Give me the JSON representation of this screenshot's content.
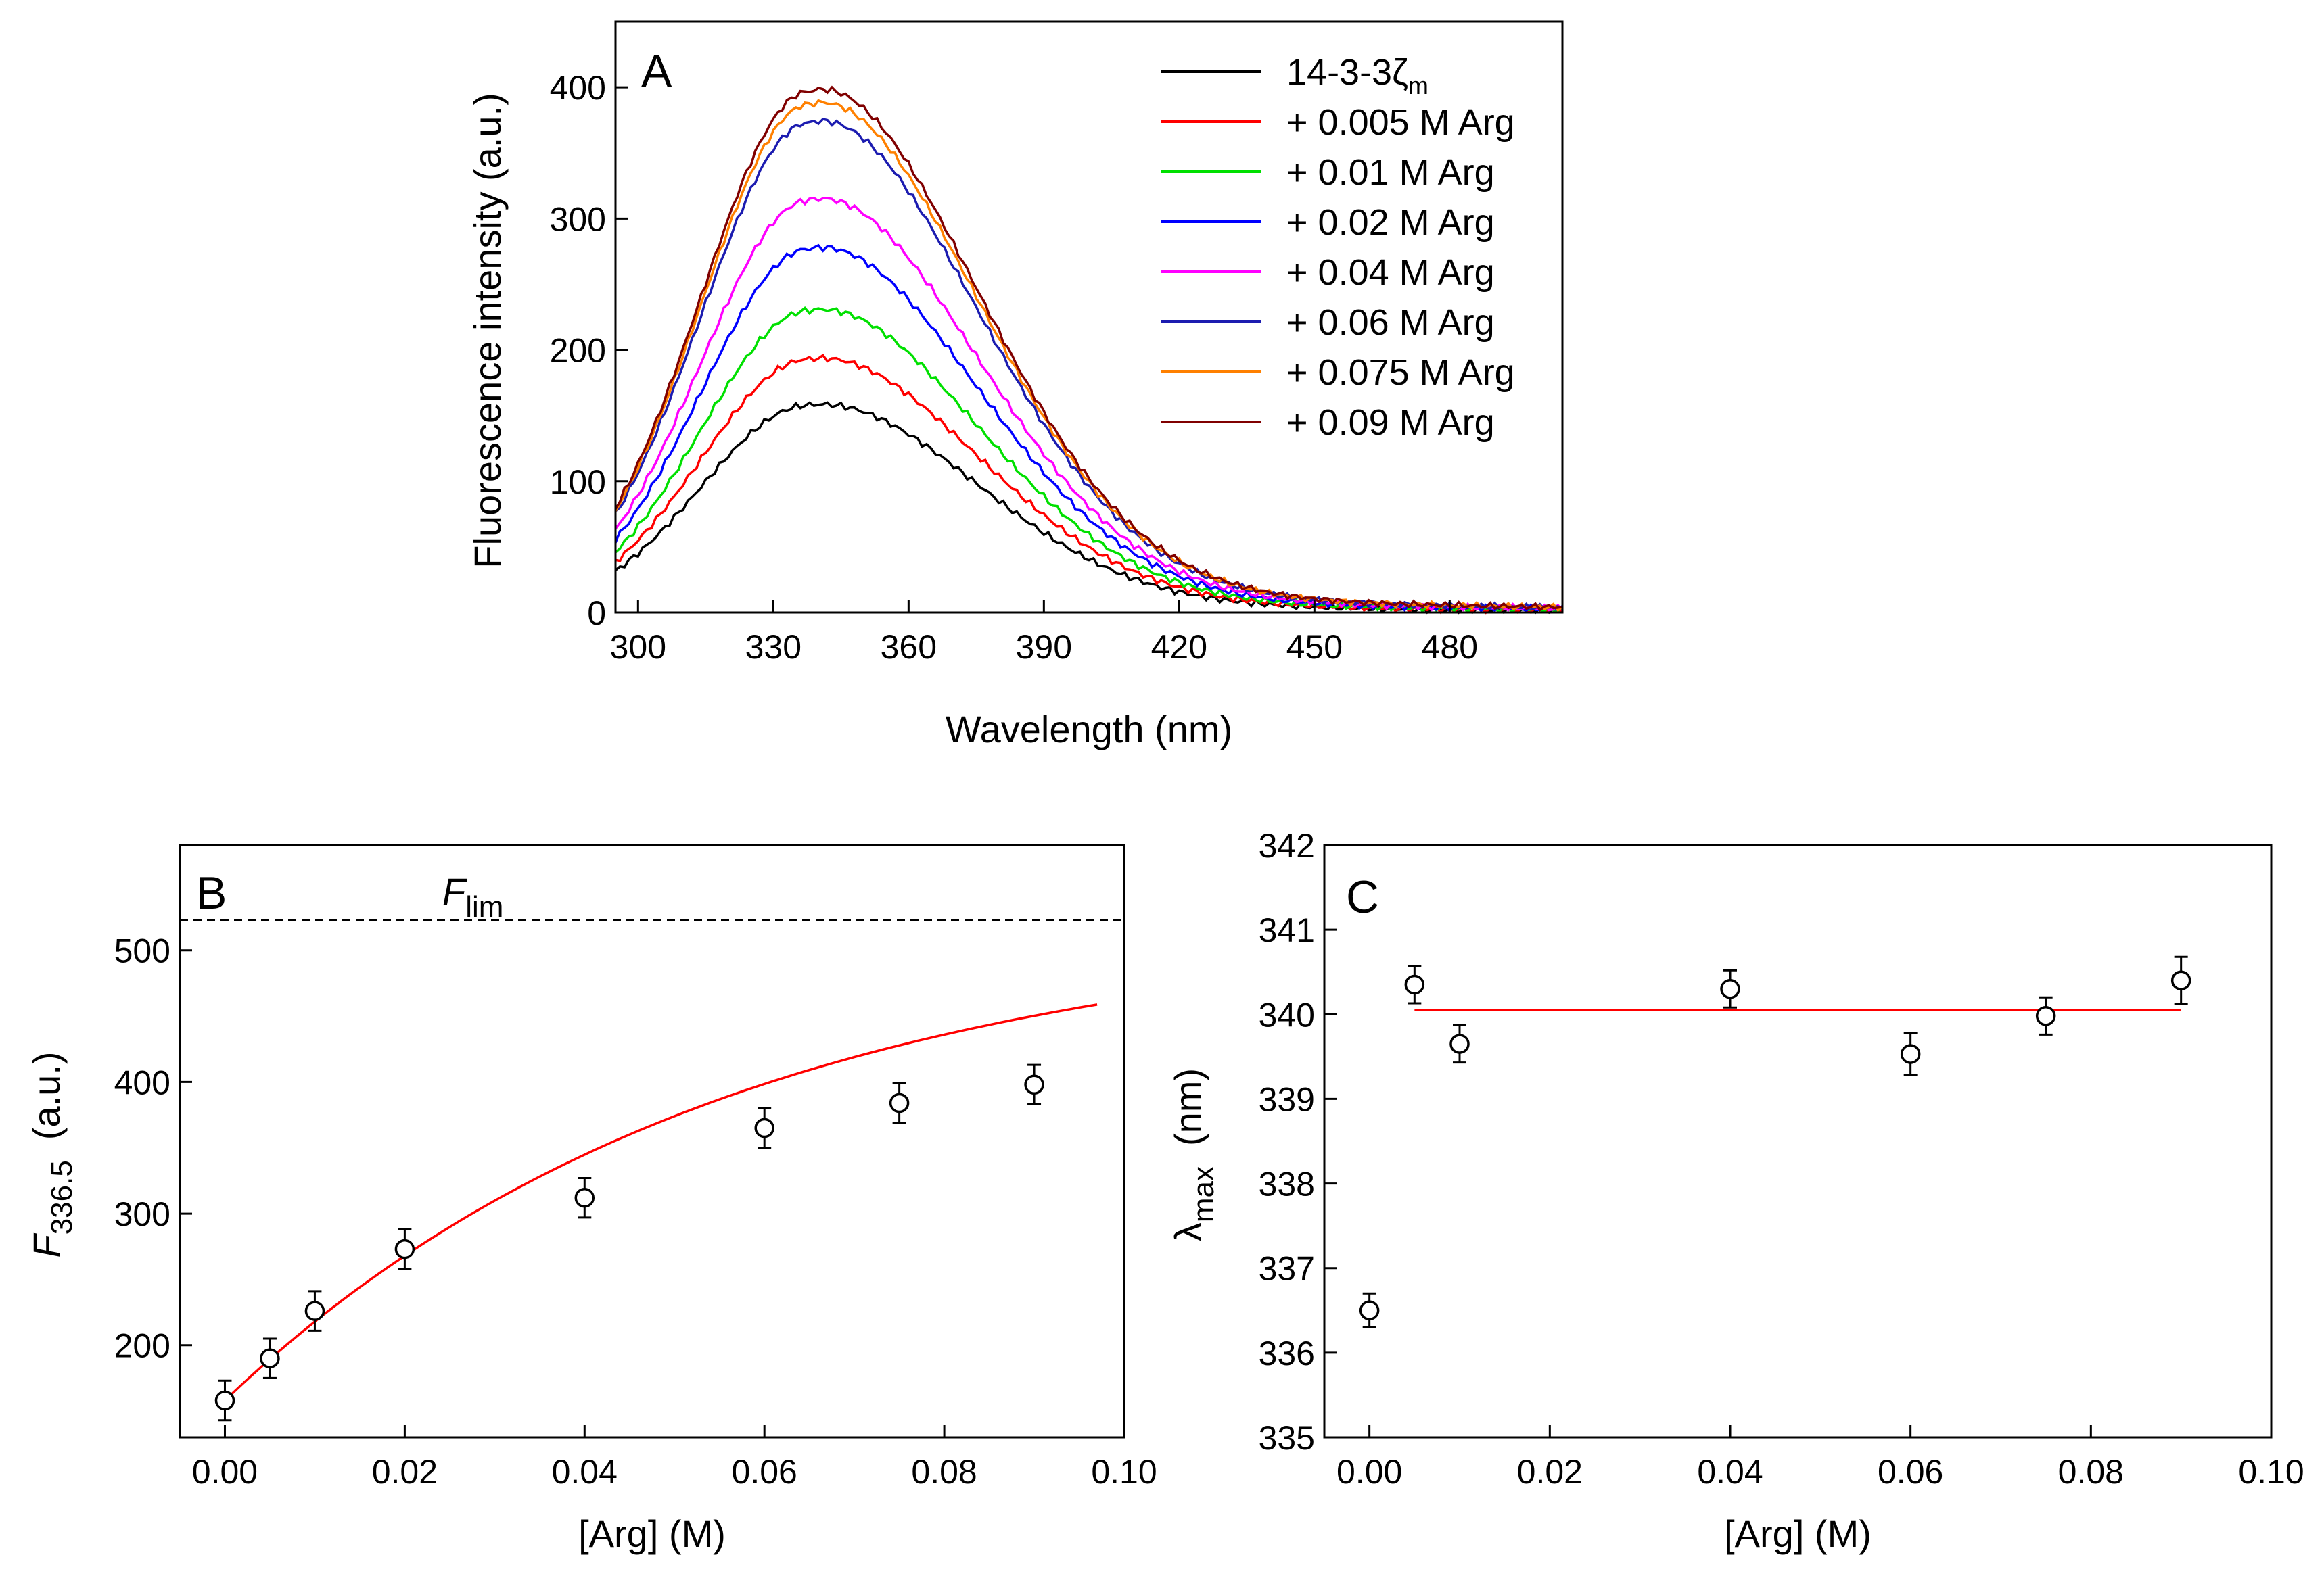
{
  "chart_data": [
    {
      "panel": "A",
      "type": "line",
      "panel_label": "A",
      "xlabel": "Wavelength  (nm)",
      "ylabel": "Fluorescence intensity  (a.u.)",
      "xlim": [
        295,
        505
      ],
      "ylim": [
        0,
        450
      ],
      "xticks": [
        "300",
        "330",
        "360",
        "390",
        "420",
        "450",
        "480"
      ],
      "yticks": [
        "0",
        "100",
        "200",
        "300",
        "400"
      ],
      "legend_position": "top-right",
      "series": [
        {
          "name": "14-3-3ζm",
          "legend_main": "14-3-3ζ",
          "legend_sub": "m",
          "color": "#000000",
          "peak": 158
        },
        {
          "name": "+ 0.005 M Arg",
          "color": "#ff0000",
          "peak": 193
        },
        {
          "name": "+ 0.01 M Arg",
          "color": "#00e000",
          "peak": 230
        },
        {
          "name": "+ 0.02 M Arg",
          "color": "#0000ff",
          "peak": 277
        },
        {
          "name": "+ 0.04 M Arg",
          "color": "#ff00ff",
          "peak": 314
        },
        {
          "name": "+ 0.06 M Arg",
          "color": "#1c1cb0",
          "peak": 373
        },
        {
          "name": "+ 0.075 M Arg",
          "color": "#ff8000",
          "peak": 387
        },
        {
          "name": "+ 0.09 M Arg",
          "color": "#800000",
          "peak": 397
        }
      ]
    },
    {
      "panel": "B",
      "type": "scatter",
      "panel_label": "B",
      "xlabel": "[Arg] (M)",
      "ylabel_main": "F",
      "ylabel_sub": "336.5",
      "ylabel_unit": "(a.u.)",
      "xlim": [
        -0.005,
        0.1
      ],
      "ylim": [
        130,
        580
      ],
      "xticks": [
        "0.00",
        "0.02",
        "0.04",
        "0.06",
        "0.08",
        "0.10"
      ],
      "yticks": [
        "200",
        "300",
        "400",
        "500"
      ],
      "limit_label_main": "F",
      "limit_label_sub": "lim",
      "limit_value": 523,
      "x": [
        0,
        0.005,
        0.01,
        0.02,
        0.04,
        0.06,
        0.075,
        0.09
      ],
      "y": [
        158,
        190,
        226,
        273,
        312,
        365,
        384,
        398
      ],
      "yerr": [
        15,
        15,
        15,
        15,
        15,
        15,
        15,
        15
      ],
      "fit_color": "#ff0000",
      "fit_x_range": [
        0,
        0.097
      ]
    },
    {
      "panel": "C",
      "type": "scatter",
      "panel_label": "C",
      "xlabel": "[Arg] (M)",
      "ylabel_main": "λ",
      "ylabel_sub": "max",
      "ylabel_unit": "(nm)",
      "xlim": [
        -0.005,
        0.1
      ],
      "ylim": [
        335,
        342
      ],
      "xticks": [
        "0.00",
        "0.02",
        "0.04",
        "0.06",
        "0.08",
        "0.10"
      ],
      "yticks": [
        "335",
        "336",
        "337",
        "338",
        "339",
        "340",
        "341",
        "342"
      ],
      "x": [
        0,
        0.005,
        0.01,
        0.04,
        0.06,
        0.075,
        0.09
      ],
      "y": [
        336.5,
        340.35,
        339.65,
        340.3,
        339.53,
        339.98,
        340.4
      ],
      "yerr": [
        0.2,
        0.22,
        0.22,
        0.22,
        0.25,
        0.22,
        0.28
      ],
      "fit_color": "#ff0000",
      "fit_value": 340.05,
      "fit_x_range": [
        0.005,
        0.09
      ]
    }
  ]
}
